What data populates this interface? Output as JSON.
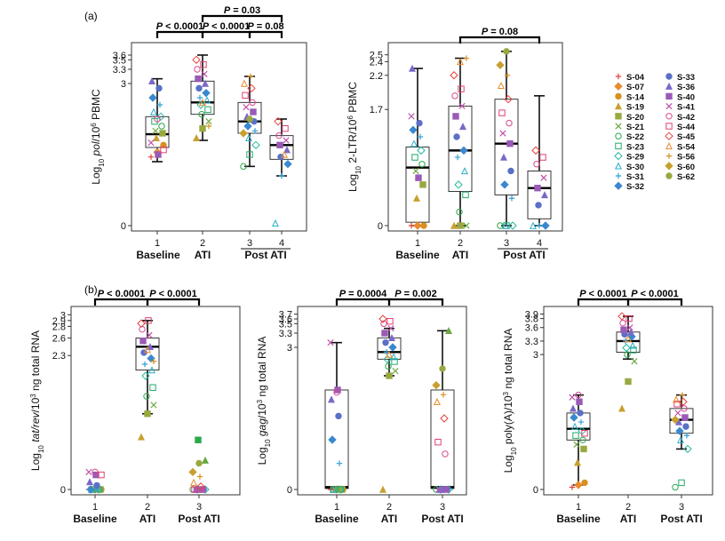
{
  "panel_labels": [
    "(a)",
    "(b)"
  ],
  "colors": {
    "box": "#222222",
    "bracket": "#000000",
    "subjects": [
      "#e4403a",
      "#e88b2c",
      "#d99020",
      "#c9a030",
      "#9aa840",
      "#6aa840",
      "#2aa84a",
      "#1faa6a",
      "#26b8a0",
      "#2ab0c8",
      "#30a0d8",
      "#3a88d0",
      "#5a70c8",
      "#7a68c8",
      "#9a5ab8",
      "#c050a8",
      "#d84890",
      "#e04070"
    ]
  },
  "legend": {
    "left": [
      "S-04",
      "S-07",
      "S-14",
      "S-19",
      "S-20",
      "S-21",
      "S-22",
      "S-23",
      "S-29",
      "S-30",
      "S-31",
      "S-32"
    ],
    "right": [
      "S-33",
      "S-36",
      "S-40",
      "S-41",
      "S-42",
      "S-44",
      "S-45",
      "S-54",
      "S-56",
      "S-60",
      "S-62"
    ]
  },
  "chart_data": [
    {
      "type": "box",
      "id": "a1",
      "ylabel_prefix": "Log",
      "ylabel_sub": "10",
      "ylabel_mid_italic": "pol",
      "ylabel_after": "/10",
      "ylabel_sup": "6",
      "ylabel_end": " PBMC",
      "ylim": [
        0,
        3.75
      ],
      "yticks": [
        "0",
        "3",
        "3.3",
        "3.5",
        "3.6"
      ],
      "ytick_values": [
        0,
        3,
        3.3,
        3.5,
        3.6
      ],
      "x": [
        1,
        2,
        3,
        4
      ],
      "xticks": [
        "1",
        "2",
        "3",
        "4"
      ],
      "group_labels": [
        "Baseline",
        "ATI",
        "Post ATI"
      ],
      "boxes": [
        {
          "x": 1,
          "min": 1.35,
          "q1": 1.65,
          "median": 1.93,
          "q3": 2.3,
          "max": 3.1
        },
        {
          "x": 2,
          "min": 1.8,
          "q1": 2.35,
          "median": 2.6,
          "q3": 3.05,
          "max": 3.6
        },
        {
          "x": 3,
          "min": 1.25,
          "q1": 1.95,
          "median": 2.2,
          "q3": 2.6,
          "max": 3.15
        },
        {
          "x": 4,
          "min": 1.05,
          "q1": 1.4,
          "median": 1.7,
          "q3": 1.9,
          "max": 2.25
        }
      ],
      "points": [
        [
          1.45,
          1.55,
          1.7,
          1.85,
          1.95,
          2.0,
          2.1,
          2.2,
          2.3,
          2.4,
          2.55,
          2.7,
          2.9,
          3.05,
          1.5,
          1.75,
          2.25,
          1.6
        ],
        [
          1.85,
          2.05,
          2.2,
          2.35,
          2.45,
          2.55,
          2.65,
          2.7,
          2.8,
          2.9,
          3.0,
          3.1,
          3.2,
          3.3,
          3.4,
          3.5,
          2.6,
          2.1
        ],
        [
          1.25,
          1.5,
          1.7,
          1.85,
          2.0,
          2.1,
          2.2,
          2.3,
          2.4,
          2.5,
          2.6,
          2.75,
          2.9,
          3.0,
          3.15,
          1.95,
          2.25
        ],
        [
          0.05,
          1.05,
          1.3,
          1.45,
          1.6,
          1.7,
          1.8,
          1.9,
          2.05,
          2.2,
          1.5
        ]
      ],
      "brackets": [
        {
          "from": 1,
          "to": 2,
          "label": "P < 0.0001",
          "level": 0
        },
        {
          "from": 2,
          "to": 3,
          "label": "P < 0.0001",
          "level": 0
        },
        {
          "from": 3,
          "to": 4,
          "label": "P = 0.08",
          "level": 0
        },
        {
          "from": 2,
          "to": 4,
          "label": "P = 0.03",
          "level": 1
        }
      ]
    },
    {
      "type": "box",
      "id": "a2",
      "ylabel_prefix": "Log",
      "ylabel_sub": "10",
      "ylabel_mid_italic": "",
      "ylabel_after": " 2-LTR/10",
      "ylabel_sup": "6",
      "ylabel_end": " PBMC",
      "ylim": [
        0,
        2.6
      ],
      "yticks": [
        "0",
        "1.7",
        "2.2",
        "2.4",
        "2.5"
      ],
      "ytick_values": [
        0,
        1.7,
        2.2,
        2.4,
        2.5
      ],
      "x": [
        1,
        2,
        3,
        4
      ],
      "xticks": [
        "1",
        "2",
        "3",
        "4"
      ],
      "group_labels": [
        "Baseline",
        "ATI",
        "Post ATI"
      ],
      "boxes": [
        {
          "x": 1,
          "min": 0,
          "q1": 0.05,
          "median": 0.85,
          "q3": 1.15,
          "max": 2.3
        },
        {
          "x": 2,
          "min": 0,
          "q1": 0.5,
          "median": 1.1,
          "q3": 1.75,
          "max": 2.45
        },
        {
          "x": 3,
          "min": 0,
          "q1": 0.45,
          "median": 1.2,
          "q3": 1.85,
          "max": 2.55
        },
        {
          "x": 4,
          "min": 0,
          "q1": 0.1,
          "median": 0.55,
          "q3": 0.8,
          "max": 1.9
        }
      ],
      "points": [
        [
          0,
          0,
          0,
          0.4,
          0.6,
          0.8,
          0.9,
          1.0,
          1.1,
          1.2,
          1.3,
          1.4,
          1.5,
          2.3,
          0.7,
          1.6
        ],
        [
          0,
          0,
          0,
          0.2,
          0.45,
          0.6,
          0.8,
          1.0,
          1.1,
          1.3,
          1.45,
          1.6,
          1.75,
          1.9,
          2.0,
          2.2,
          2.4,
          2.45
        ],
        [
          0,
          0,
          0,
          0,
          0.4,
          0.6,
          0.8,
          1.0,
          1.2,
          1.35,
          1.5,
          1.65,
          1.85,
          2.05,
          2.2,
          2.35,
          2.55
        ],
        [
          0,
          0,
          0,
          0.3,
          0.45,
          0.55,
          0.7,
          0.9,
          1.0,
          1.1
        ]
      ],
      "brackets": [
        {
          "from": 2,
          "to": 4,
          "label": "P = 0.08",
          "level": 0
        }
      ]
    },
    {
      "type": "box",
      "id": "b1",
      "ylabel_prefix": "Log",
      "ylabel_sub": "10",
      "ylabel_mid_italic": "tat/rev",
      "ylabel_after": "/10",
      "ylabel_sup": "3",
      "ylabel_end": " ng total RNA",
      "ylim": [
        0,
        3.05
      ],
      "yticks": [
        "0",
        "2.3",
        "2.6",
        "2.8",
        "2.9",
        "3"
      ],
      "ytick_values": [
        0,
        2.3,
        2.6,
        2.8,
        2.9,
        3
      ],
      "x": [
        1,
        2,
        3
      ],
      "xticks": [
        "1",
        "2",
        "3"
      ],
      "group_labels": [
        "Baseline",
        "ATI",
        "Post ATI"
      ],
      "boxes": [
        {
          "x": 2,
          "min": 1.3,
          "q1": 2.05,
          "median": 2.45,
          "q3": 2.6,
          "max": 2.9
        }
      ],
      "points": [
        [
          0,
          0,
          0,
          0,
          0,
          0,
          0,
          0,
          0,
          0,
          0,
          0,
          0.07,
          0.13,
          0.25,
          0.3,
          0.3,
          0.25
        ],
        [
          0.9,
          1.3,
          1.45,
          1.6,
          1.75,
          1.95,
          2.05,
          2.15,
          2.25,
          2.35,
          2.45,
          2.55,
          2.65,
          2.75,
          2.9,
          2.85,
          2.4,
          2.2
        ],
        [
          0,
          0,
          0,
          0,
          0,
          0,
          0,
          0,
          0,
          0,
          0,
          0,
          0.05,
          0.12,
          0.22,
          0.3,
          0.45,
          0.5,
          0.85
        ]
      ],
      "brackets": [
        {
          "from": 1,
          "to": 2,
          "label": "P < 0.0001",
          "level": 0
        },
        {
          "from": 2,
          "to": 3,
          "label": "P < 0.0001",
          "level": 0
        }
      ]
    },
    {
      "type": "box",
      "id": "b2",
      "ylabel_prefix": "Log",
      "ylabel_sub": "10",
      "ylabel_mid_italic": "gag",
      "ylabel_after": "/10",
      "ylabel_sup": "3",
      "ylabel_end": " ng total RNA",
      "ylim": [
        0,
        3.75
      ],
      "yticks": [
        "0",
        "3",
        "3.3",
        "3.5",
        "3.6",
        "3.7"
      ],
      "ytick_values": [
        0,
        3,
        3.3,
        3.5,
        3.6,
        3.7
      ],
      "x": [
        1,
        2,
        3
      ],
      "xticks": [
        "1",
        "2",
        "3"
      ],
      "group_labels": [
        "Baseline",
        "ATI",
        "Post ATI"
      ],
      "boxes": [
        {
          "x": 1,
          "min": 0,
          "q1": 0.02,
          "median": 0.05,
          "q3": 2.1,
          "max": 3.1
        },
        {
          "x": 2,
          "min": 2.4,
          "q1": 2.75,
          "median": 2.9,
          "q3": 3.2,
          "max": 3.4
        },
        {
          "x": 3,
          "min": 0,
          "q1": 0.02,
          "median": 0.05,
          "q3": 2.1,
          "max": 3.35
        }
      ],
      "points": [
        [
          0,
          0,
          0,
          0,
          0,
          0,
          0,
          0,
          0,
          0,
          0.55,
          1.05,
          1.55,
          1.9,
          2.1,
          3.1,
          2.05
        ],
        [
          0,
          2.4,
          2.5,
          2.6,
          2.7,
          2.75,
          2.8,
          2.9,
          3.0,
          3.1,
          3.2,
          3.3,
          3.4,
          3.5,
          3.55,
          3.6,
          2.85
        ],
        [
          0,
          0,
          0,
          0,
          0,
          0,
          0,
          0,
          0,
          0,
          0.75,
          1.0,
          1.5,
          1.85,
          2.0,
          2.2,
          2.55,
          3.35
        ]
      ],
      "brackets": [
        {
          "from": 1,
          "to": 2,
          "label": "P = 0.0004",
          "level": 0
        },
        {
          "from": 2,
          "to": 3,
          "label": "P = 0.002",
          "level": 0
        }
      ]
    },
    {
      "type": "box",
      "id": "b3",
      "ylabel_prefix": "Log",
      "ylabel_sub": "10",
      "ylabel_mid_italic": "",
      "ylabel_after": " poly(A)/10",
      "ylabel_sup": "3",
      "ylabel_end": " ng total RNA",
      "ylim": [
        0,
        3.95
      ],
      "yticks": [
        "0",
        "3",
        "3.3",
        "3.6",
        "3.8",
        "3.9"
      ],
      "ytick_values": [
        0,
        3,
        3.3,
        3.6,
        3.8,
        3.9
      ],
      "x": [
        1,
        2,
        3
      ],
      "xticks": [
        "1",
        "2",
        "3"
      ],
      "group_labels": [
        "Baseline",
        "ATI",
        "Post ATI"
      ],
      "boxes": [
        {
          "x": 1,
          "min": 0.1,
          "q1": 1.1,
          "median": 1.35,
          "q3": 1.7,
          "max": 2.1
        },
        {
          "x": 2,
          "min": 2.9,
          "q1": 3.05,
          "median": 3.3,
          "q3": 3.5,
          "max": 3.85
        },
        {
          "x": 3,
          "min": 0.9,
          "q1": 1.25,
          "median": 1.55,
          "q3": 1.8,
          "max": 2.1
        }
      ],
      "points": [
        [
          0.05,
          0.1,
          0.15,
          0.6,
          0.9,
          1.0,
          1.1,
          1.2,
          1.3,
          1.4,
          1.5,
          1.6,
          1.7,
          1.8,
          1.95,
          2.05,
          2.1,
          1.25
        ],
        [
          1.8,
          2.4,
          2.85,
          3.0,
          3.1,
          3.15,
          3.2,
          3.3,
          3.4,
          3.45,
          3.5,
          3.55,
          3.6,
          3.7,
          3.8,
          3.85,
          3.35
        ],
        [
          0.05,
          0.15,
          0.9,
          1.1,
          1.2,
          1.3,
          1.4,
          1.5,
          1.6,
          1.7,
          1.8,
          1.9,
          1.95,
          2.0,
          2.1,
          1.55
        ]
      ],
      "brackets": [
        {
          "from": 1,
          "to": 2,
          "label": "P < 0.0001",
          "level": 0
        },
        {
          "from": 2,
          "to": 3,
          "label": "P < 0.0001",
          "level": 0
        }
      ]
    }
  ]
}
